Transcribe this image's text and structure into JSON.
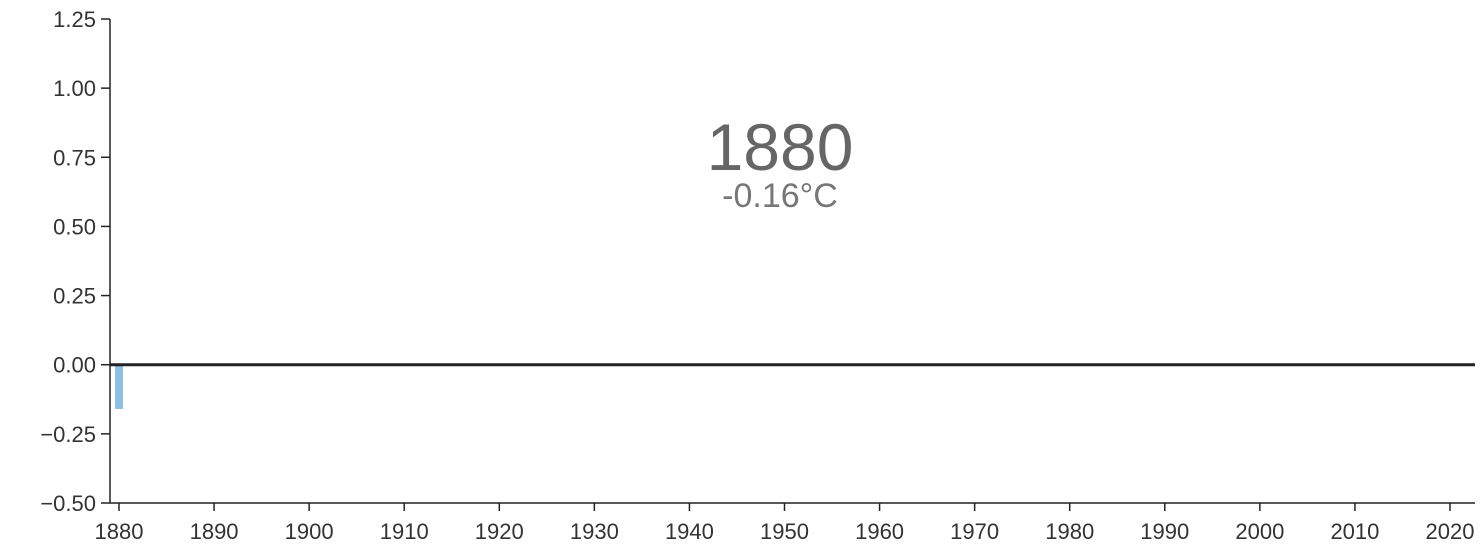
{
  "chart_data": {
    "type": "bar",
    "x": [
      1880
    ],
    "values": [
      -0.16
    ],
    "xlim": [
      1879,
      2024
    ],
    "ylim": [
      -0.5,
      1.25
    ],
    "x_ticks": [
      1880,
      1890,
      1900,
      1910,
      1920,
      1930,
      1940,
      1950,
      1960,
      1970,
      1980,
      1990,
      2000,
      2010,
      2020
    ],
    "y_ticks": [
      -0.5,
      -0.25,
      0,
      0.25,
      0.5,
      0.75,
      1,
      1.25
    ],
    "x_tick_labels": [
      "1880",
      "1890",
      "1900",
      "1910",
      "1920",
      "1930",
      "1940",
      "1950",
      "1960",
      "1970",
      "1980",
      "1990",
      "2000",
      "2010",
      "2020"
    ],
    "y_tick_labels": [
      "−0.50",
      "−0.25",
      "0.00",
      "0.25",
      "0.50",
      "0.75",
      "1.00",
      "1.25"
    ],
    "title": "",
    "xlabel": "",
    "ylabel": "",
    "grid": false,
    "colors": {
      "bar": "#8fc1df",
      "zero_line": "#222222",
      "axis": "#222222"
    }
  },
  "readout": {
    "year": "1880",
    "value": "-0.16°C"
  }
}
